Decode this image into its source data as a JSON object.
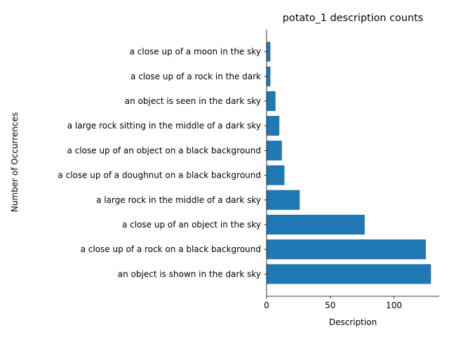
{
  "chart_data": {
    "type": "bar",
    "orientation": "horizontal",
    "title": "potato_1 description counts",
    "xlabel": "Description",
    "ylabel": "Number of Occurrences",
    "categories": [
      "an object is shown in the dark sky",
      "a close up of a rock on a black background",
      "a close up of an object in the sky",
      "a large rock in the middle of a dark sky",
      "a close up of a doughnut on a black background",
      "a close up of an object on a black background",
      "a large rock sitting in the middle of a dark sky",
      "an object is seen in the dark sky",
      "a close up of a rock in the dark",
      "a close up of a moon in the sky"
    ],
    "values": [
      129,
      125,
      77,
      26,
      14,
      12,
      10,
      7,
      3,
      3
    ],
    "xlim": [
      0,
      135.45
    ],
    "xticks": [
      0,
      50,
      100
    ],
    "grid": false,
    "bar_color": "#1f77b4"
  }
}
